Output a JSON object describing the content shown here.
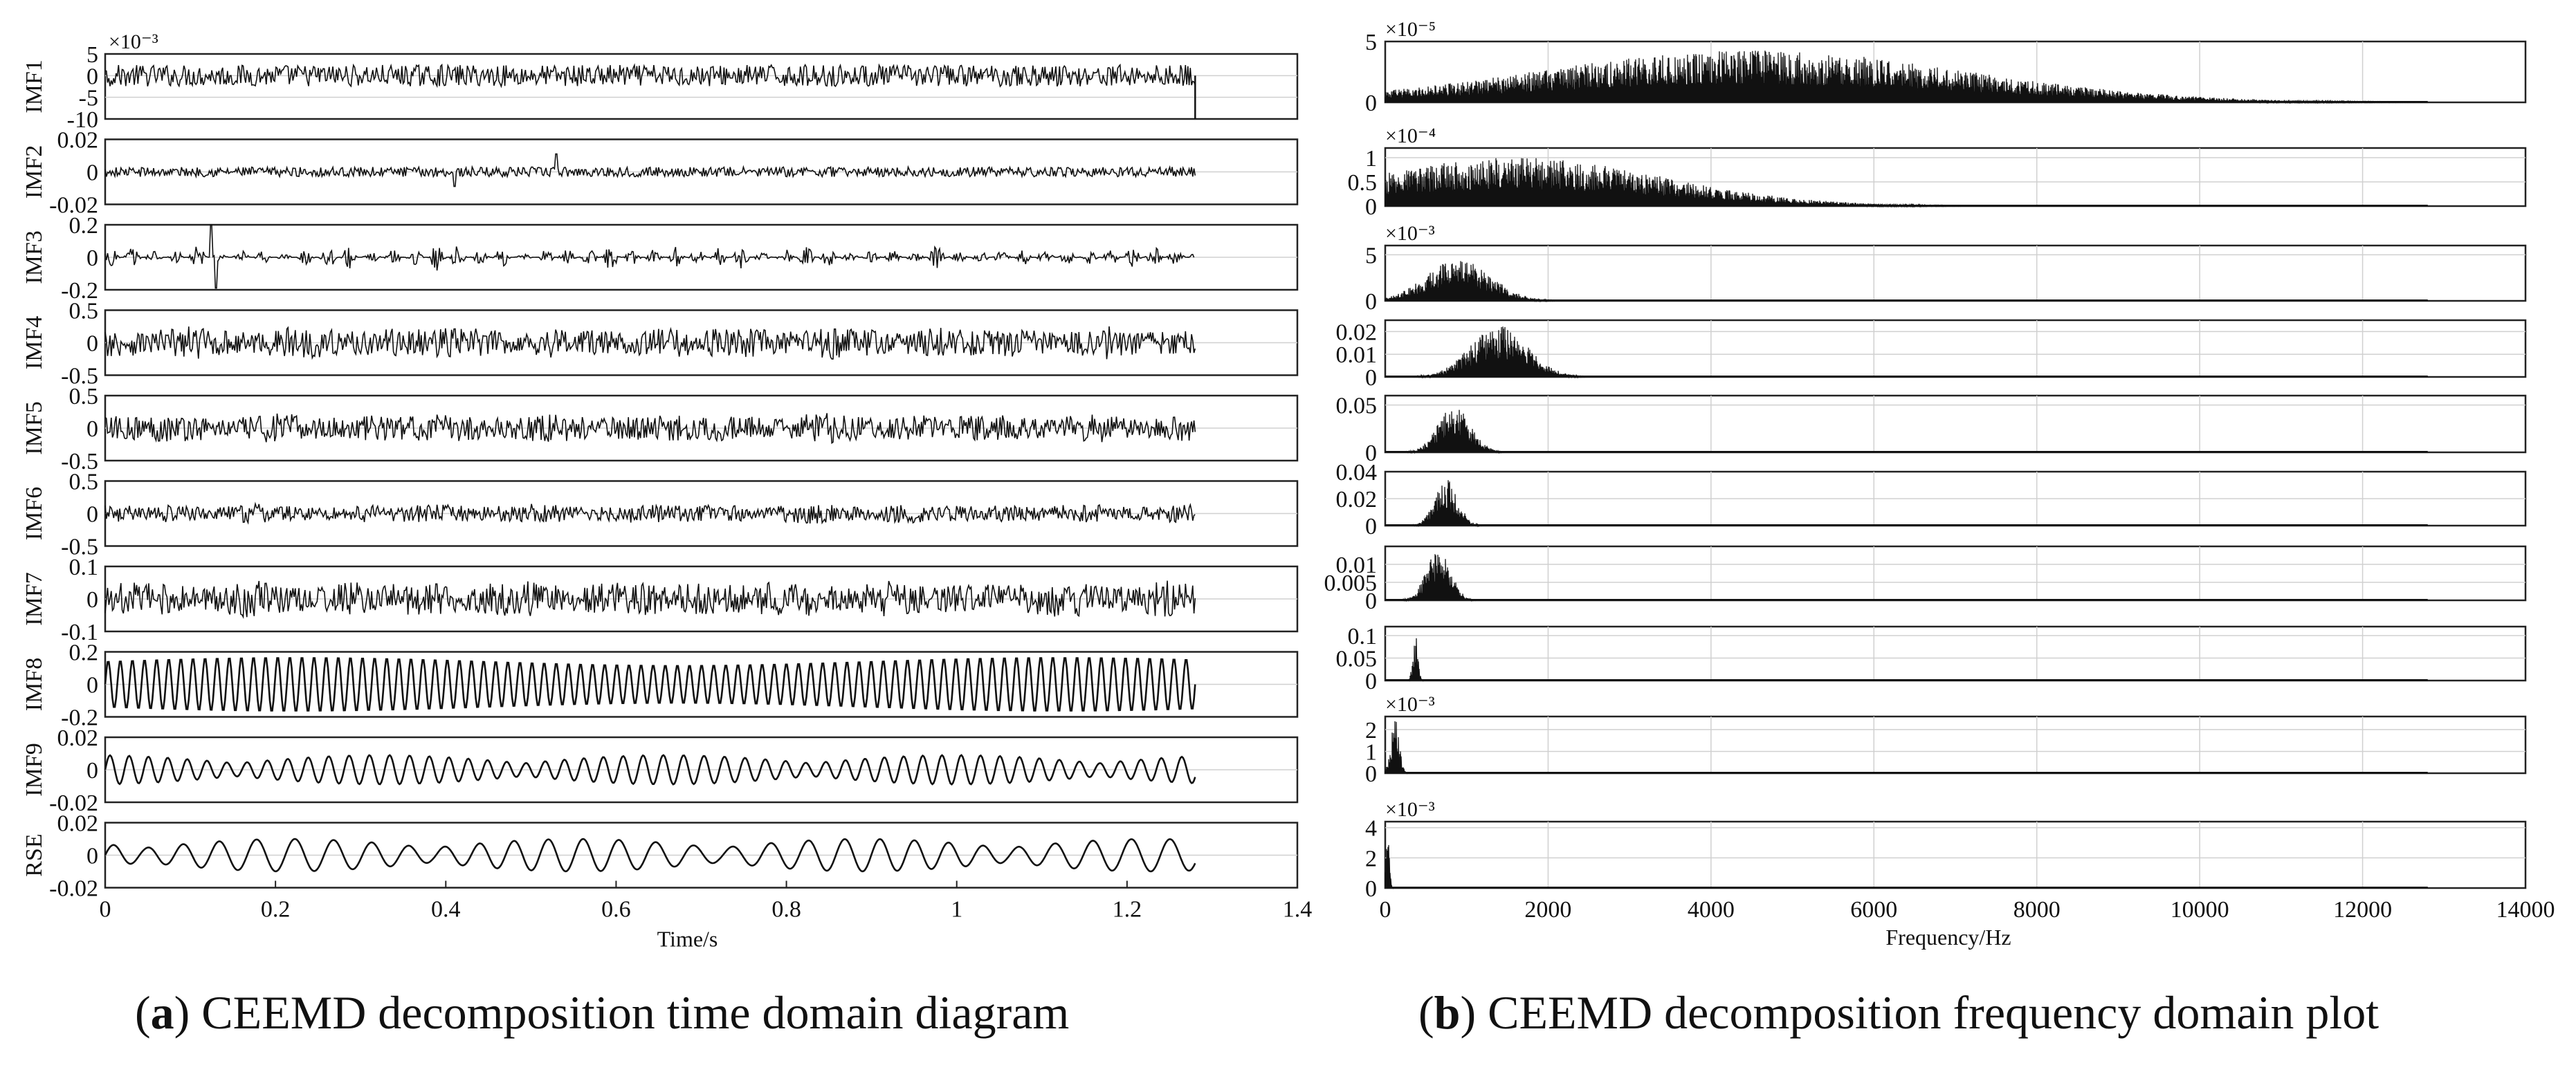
{
  "captions": {
    "a": {
      "paren_open": "(",
      "letter": "a",
      "text": ") CEEMD decomposition time domain diagram"
    },
    "b": {
      "paren_open": "(",
      "letter": "b",
      "text": ") CEEMD decomposition frequency domain plot"
    }
  },
  "colors": {
    "trace": "#111111",
    "axes": "#222222",
    "grid": "#d0d0d0",
    "background": "#ffffff"
  },
  "chart_data": [
    {
      "type": "line",
      "title": "",
      "xlabel": "Time/s",
      "xlim": [
        0,
        1.4
      ],
      "xticks": [
        "0",
        "0.2",
        "0.4",
        "0.6",
        "0.8",
        "1",
        "1.2",
        "1.4"
      ],
      "data_end_x": 1.28,
      "grid": "horizontal",
      "series": [
        {
          "name": "IMF1",
          "exponent": "×10⁻³",
          "ylim": [
            -10,
            5
          ],
          "yticks": [
            "5",
            "0",
            "-5",
            "-10"
          ],
          "amplitude": 2.5,
          "kind": "noise",
          "dropout_at_end": true
        },
        {
          "name": "IMF2",
          "exponent": "",
          "ylim": [
            -0.02,
            0.02
          ],
          "yticks": [
            "0.02",
            "0",
            "-0.02"
          ],
          "amplitude": 0.003,
          "kind": "noise",
          "spikes": [
            {
              "x": 0.41,
              "v": -0.009
            },
            {
              "x": 0.53,
              "v": 0.011
            }
          ]
        },
        {
          "name": "IMF3",
          "exponent": "",
          "ylim": [
            -0.2,
            0.2
          ],
          "yticks": [
            "0.2",
            "0",
            "-0.2"
          ],
          "amplitude": 0.06,
          "kind": "bursts",
          "spikes": [
            {
              "x": 0.125,
              "v": 0.2
            },
            {
              "x": 0.13,
              "v": -0.19
            }
          ]
        },
        {
          "name": "IMF4",
          "exponent": "",
          "ylim": [
            -0.5,
            0.5
          ],
          "yticks": [
            "0.5",
            "0",
            "-0.5"
          ],
          "amplitude": 0.2,
          "kind": "dense"
        },
        {
          "name": "IMF5",
          "exponent": "",
          "ylim": [
            -0.5,
            0.5
          ],
          "yticks": [
            "0.5",
            "0",
            "-0.5"
          ],
          "amplitude": 0.18,
          "kind": "dense"
        },
        {
          "name": "IMF6",
          "exponent": "",
          "ylim": [
            -0.5,
            0.5
          ],
          "yticks": [
            "0.5",
            "0",
            "-0.5"
          ],
          "amplitude": 0.12,
          "kind": "dense"
        },
        {
          "name": "IMF7",
          "exponent": "",
          "ylim": [
            -0.1,
            0.1
          ],
          "yticks": [
            "0.1",
            "0",
            "-0.1"
          ],
          "amplitude": 0.045,
          "kind": "dense"
        },
        {
          "name": "IMF8",
          "exponent": "",
          "ylim": [
            -0.2,
            0.2
          ],
          "yticks": [
            "0.2",
            "0",
            "-0.2"
          ],
          "amplitude": 0.17,
          "kind": "sine",
          "cycles": 90
        },
        {
          "name": "IMF9",
          "exponent": "",
          "ylim": [
            -0.02,
            0.02
          ],
          "yticks": [
            "0.02",
            "0",
            "-0.02"
          ],
          "amplitude": 0.009,
          "kind": "wave",
          "cycles": 55
        },
        {
          "name": "RSE",
          "exponent": "",
          "ylim": [
            -0.02,
            0.02
          ],
          "yticks": [
            "0.02",
            "0",
            "-0.02"
          ],
          "amplitude": 0.01,
          "kind": "wave",
          "cycles": 30
        }
      ]
    },
    {
      "type": "area",
      "title": "",
      "xlabel": "Frequency/Hz",
      "xlim": [
        0,
        14000
      ],
      "xticks": [
        "0",
        "2000",
        "4000",
        "6000",
        "8000",
        "10000",
        "12000",
        "14000"
      ],
      "data_end_x": 12800,
      "grid": "both",
      "series": [
        {
          "name": "IMF1",
          "exponent": "×10⁻⁵",
          "ylim": [
            0,
            5
          ],
          "yticks": [
            "5",
            "0"
          ],
          "peak_hz": 4500,
          "width_hz": 2600,
          "peak_value": 4.3
        },
        {
          "name": "IMF2",
          "exponent": "×10⁻⁴",
          "ylim": [
            0,
            1.2
          ],
          "yticks": [
            "1",
            "0.5",
            "0"
          ],
          "peak_hz": 1600,
          "width_hz": 1800,
          "peak_value": 1.0
        },
        {
          "name": "IMF3",
          "exponent": "×10⁻³",
          "ylim": [
            0,
            6
          ],
          "yticks": [
            "5",
            "0"
          ],
          "peak_hz": 900,
          "width_hz": 400,
          "peak_value": 4.5
        },
        {
          "name": "IMF4",
          "exponent": "",
          "ylim": [
            0,
            0.025
          ],
          "yticks": [
            "0.02",
            "0.01",
            "0"
          ],
          "peak_hz": 1400,
          "width_hz": 350,
          "peak_value": 0.023
        },
        {
          "name": "IMF5",
          "exponent": "",
          "ylim": [
            0,
            0.06
          ],
          "yticks": [
            "0.05",
            "0"
          ],
          "peak_hz": 850,
          "width_hz": 200,
          "peak_value": 0.05
        },
        {
          "name": "IMF6",
          "exponent": "",
          "ylim": [
            0,
            0.04
          ],
          "yticks": [
            "0.04",
            "0.02",
            "0"
          ],
          "peak_hz": 750,
          "width_hz": 140,
          "peak_value": 0.035
        },
        {
          "name": "IMF7",
          "exponent": "",
          "ylim": [
            0,
            0.015
          ],
          "yticks": [
            "0.01",
            "0.005",
            "0"
          ],
          "peak_hz": 650,
          "width_hz": 150,
          "peak_value": 0.014
        },
        {
          "name": "IMF8",
          "exponent": "",
          "ylim": [
            0,
            0.12
          ],
          "yticks": [
            "0.1",
            "0.05",
            "0"
          ],
          "peak_hz": 370,
          "width_hz": 30,
          "peak_value": 0.11
        },
        {
          "name": "IMF9",
          "exponent": "×10⁻³",
          "ylim": [
            0,
            2.6
          ],
          "yticks": [
            "2",
            "1",
            "0"
          ],
          "peak_hz": 120,
          "width_hz": 50,
          "peak_value": 2.5
        },
        {
          "name": "RSE",
          "exponent": "×10⁻³",
          "ylim": [
            0,
            4.4
          ],
          "yticks": [
            "4",
            "2",
            "0"
          ],
          "peak_hz": 30,
          "width_hz": 20,
          "peak_value": 4.2
        }
      ]
    }
  ]
}
